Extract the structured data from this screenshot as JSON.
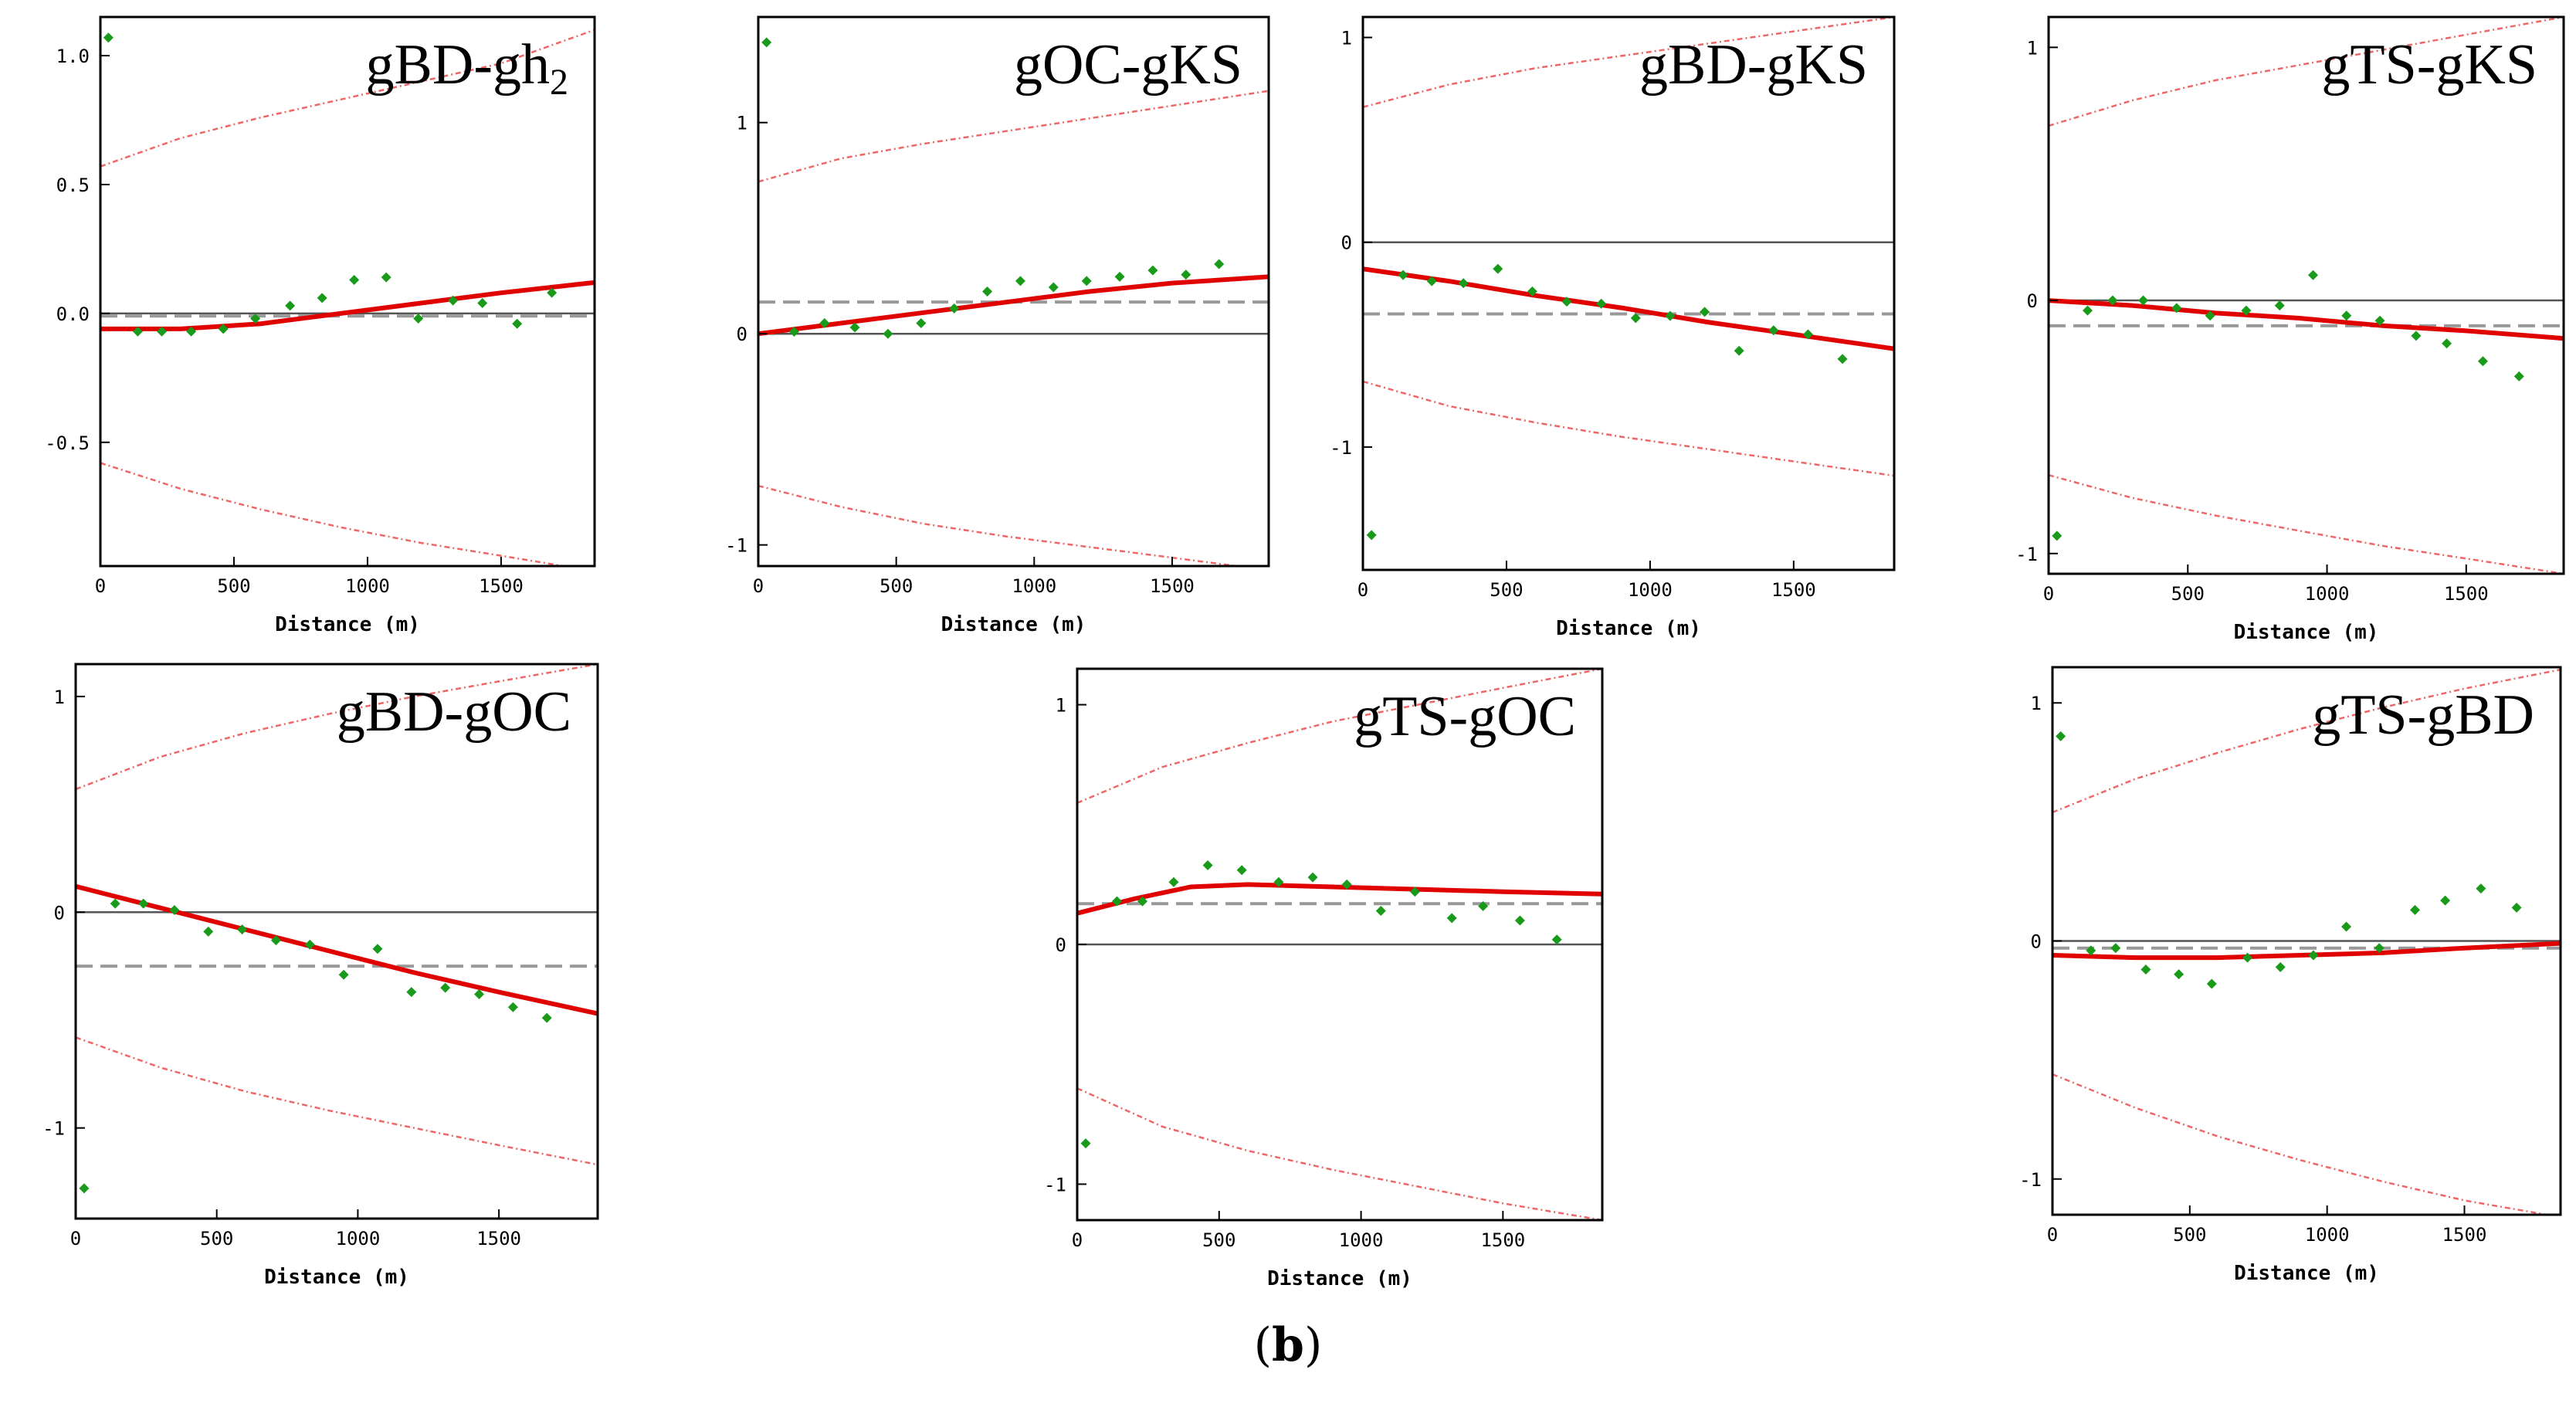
{
  "figure_label": "b",
  "colors": {
    "fit": "#e00000",
    "envelope": "#ee6666",
    "points": "#1a9a1a",
    "zero": "#555555",
    "mean": "#999999",
    "axis": "#000000"
  },
  "chart_data": [
    {
      "type": "scatter",
      "title": "gBD-gh",
      "title_subscript": "2",
      "xlabel": "Distance (m)",
      "ylabel": "",
      "xlim": [
        0,
        1850
      ],
      "ylim": [
        -0.98,
        1.15
      ],
      "xticks": [
        {
          "v": 0,
          "label": "0"
        },
        {
          "v": 500,
          "label": "500"
        },
        {
          "v": 1000,
          "label": "1000"
        },
        {
          "v": 1500,
          "label": "1500"
        }
      ],
      "yticks": [
        {
          "v": 1.0,
          "label": "1.0"
        },
        {
          "v": 0.5,
          "label": "0.5"
        },
        {
          "v": 0.0,
          "label": "0.0"
        },
        {
          "v": -0.5,
          "label": "-0.5"
        }
      ],
      "mean_line": -0.01,
      "points": {
        "x": [
          30,
          140,
          230,
          340,
          460,
          580,
          710,
          830,
          950,
          1070,
          1190,
          1320,
          1430,
          1560,
          1690
        ],
        "y": [
          1.07,
          -0.07,
          -0.07,
          -0.07,
          -0.06,
          -0.02,
          0.03,
          0.06,
          0.13,
          0.14,
          -0.02,
          0.05,
          0.04,
          -0.04,
          0.08
        ]
      },
      "fit": {
        "x": [
          0,
          300,
          600,
          900,
          1200,
          1500,
          1850
        ],
        "y": [
          -0.06,
          -0.06,
          -0.04,
          0.0,
          0.04,
          0.08,
          0.12
        ]
      },
      "upper_envelope": {
        "x": [
          0,
          300,
          600,
          900,
          1200,
          1500,
          1850
        ],
        "y": [
          0.57,
          0.68,
          0.76,
          0.83,
          0.9,
          0.97,
          1.1
        ]
      },
      "lower_envelope": {
        "x": [
          0,
          300,
          600,
          900,
          1200,
          1500,
          1850
        ],
        "y": [
          -0.58,
          -0.68,
          -0.76,
          -0.83,
          -0.89,
          -0.94,
          -1.0
        ]
      }
    },
    {
      "type": "scatter",
      "title": "gOC-gKS",
      "title_subscript": "",
      "xlabel": "Distance (m)",
      "ylabel": "",
      "xlim": [
        0,
        1850
      ],
      "ylim": [
        -1.1,
        1.5
      ],
      "xticks": [
        {
          "v": 0,
          "label": "0"
        },
        {
          "v": 500,
          "label": "500"
        },
        {
          "v": 1000,
          "label": "1000"
        },
        {
          "v": 1500,
          "label": "1500"
        }
      ],
      "yticks": [
        {
          "v": 1,
          "label": "1"
        },
        {
          "v": 0,
          "label": "0"
        },
        {
          "v": -1,
          "label": "-1"
        }
      ],
      "mean_line": 0.15,
      "points": {
        "x": [
          30,
          130,
          240,
          350,
          470,
          590,
          710,
          830,
          950,
          1070,
          1190,
          1310,
          1430,
          1550,
          1670
        ],
        "y": [
          1.38,
          0.01,
          0.05,
          0.03,
          0.0,
          0.05,
          0.12,
          0.2,
          0.25,
          0.22,
          0.25,
          0.27,
          0.3,
          0.28,
          0.33
        ]
      },
      "fit": {
        "x": [
          0,
          300,
          600,
          900,
          1200,
          1500,
          1850
        ],
        "y": [
          0.0,
          0.05,
          0.1,
          0.15,
          0.2,
          0.24,
          0.27
        ]
      },
      "upper_envelope": {
        "x": [
          0,
          300,
          600,
          900,
          1200,
          1500,
          1850
        ],
        "y": [
          0.72,
          0.83,
          0.9,
          0.96,
          1.02,
          1.08,
          1.15
        ]
      },
      "lower_envelope": {
        "x": [
          0,
          300,
          600,
          900,
          1200,
          1500,
          1850
        ],
        "y": [
          -0.72,
          -0.82,
          -0.9,
          -0.96,
          -1.01,
          -1.06,
          -1.12
        ]
      }
    },
    {
      "type": "scatter",
      "title": "gBD-gKS",
      "title_subscript": "",
      "xlabel": "Distance (m)",
      "ylabel": "",
      "xlim": [
        0,
        1850
      ],
      "ylim": [
        -1.6,
        1.1
      ],
      "xticks": [
        {
          "v": 0,
          "label": "0"
        },
        {
          "v": 500,
          "label": "500"
        },
        {
          "v": 1000,
          "label": "1000"
        },
        {
          "v": 1500,
          "label": "1500"
        }
      ],
      "yticks": [
        {
          "v": 1,
          "label": "1"
        },
        {
          "v": 0,
          "label": "0"
        },
        {
          "v": -1,
          "label": "-1"
        }
      ],
      "mean_line": -0.35,
      "points": {
        "x": [
          30,
          140,
          240,
          350,
          470,
          590,
          710,
          830,
          950,
          1070,
          1190,
          1310,
          1430,
          1550,
          1670
        ],
        "y": [
          -1.43,
          -0.16,
          -0.19,
          -0.2,
          -0.13,
          -0.24,
          -0.29,
          -0.3,
          -0.37,
          -0.36,
          -0.34,
          -0.53,
          -0.43,
          -0.45,
          -0.57
        ]
      },
      "fit": {
        "x": [
          0,
          300,
          600,
          900,
          1200,
          1500,
          1850
        ],
        "y": [
          -0.13,
          -0.19,
          -0.26,
          -0.32,
          -0.39,
          -0.45,
          -0.52
        ]
      },
      "upper_envelope": {
        "x": [
          0,
          300,
          600,
          900,
          1200,
          1500,
          1850
        ],
        "y": [
          0.66,
          0.77,
          0.85,
          0.91,
          0.97,
          1.03,
          1.1
        ]
      },
      "lower_envelope": {
        "x": [
          0,
          300,
          600,
          900,
          1200,
          1500,
          1850
        ],
        "y": [
          -0.68,
          -0.8,
          -0.88,
          -0.95,
          -1.01,
          -1.07,
          -1.14
        ]
      }
    },
    {
      "type": "scatter",
      "title": "gTS-gKS",
      "title_subscript": "",
      "xlabel": "Distance (m)",
      "ylabel": "",
      "xlim": [
        0,
        1850
      ],
      "ylim": [
        -1.08,
        1.12
      ],
      "xticks": [
        {
          "v": 0,
          "label": "0"
        },
        {
          "v": 500,
          "label": "500"
        },
        {
          "v": 1000,
          "label": "1000"
        },
        {
          "v": 1500,
          "label": "1500"
        }
      ],
      "yticks": [
        {
          "v": 1,
          "label": "1"
        },
        {
          "v": 0,
          "label": "0"
        },
        {
          "v": -1,
          "label": "-1"
        }
      ],
      "mean_line": -0.1,
      "points": {
        "x": [
          30,
          140,
          230,
          340,
          460,
          580,
          710,
          830,
          950,
          1070,
          1190,
          1320,
          1430,
          1560,
          1690
        ],
        "y": [
          -0.93,
          -0.04,
          0.0,
          0.0,
          -0.03,
          -0.06,
          -0.04,
          -0.02,
          0.1,
          -0.06,
          -0.08,
          -0.14,
          -0.17,
          -0.24,
          -0.3
        ]
      },
      "fit": {
        "x": [
          0,
          300,
          600,
          900,
          1200,
          1500,
          1850
        ],
        "y": [
          0.0,
          -0.02,
          -0.05,
          -0.07,
          -0.1,
          -0.12,
          -0.15
        ]
      },
      "upper_envelope": {
        "x": [
          0,
          300,
          600,
          900,
          1200,
          1500,
          1850
        ],
        "y": [
          0.69,
          0.79,
          0.87,
          0.93,
          0.99,
          1.05,
          1.12
        ]
      },
      "lower_envelope": {
        "x": [
          0,
          300,
          600,
          900,
          1200,
          1500,
          1850
        ],
        "y": [
          -0.69,
          -0.78,
          -0.85,
          -0.91,
          -0.97,
          -1.02,
          -1.08
        ]
      }
    },
    {
      "type": "scatter",
      "title": "gBD-gOC",
      "title_subscript": "",
      "xlabel": "Distance (m)",
      "ylabel": "",
      "xlim": [
        0,
        1850
      ],
      "ylim": [
        -1.42,
        1.15
      ],
      "xticks": [
        {
          "v": 0,
          "label": "0"
        },
        {
          "v": 500,
          "label": "500"
        },
        {
          "v": 1000,
          "label": "1000"
        },
        {
          "v": 1500,
          "label": "1500"
        }
      ],
      "yticks": [
        {
          "v": 1,
          "label": "1"
        },
        {
          "v": 0,
          "label": "0"
        },
        {
          "v": -1,
          "label": "-1"
        }
      ],
      "mean_line": -0.25,
      "points": {
        "x": [
          30,
          140,
          240,
          350,
          470,
          590,
          710,
          830,
          950,
          1070,
          1190,
          1310,
          1430,
          1550,
          1670
        ],
        "y": [
          -1.28,
          0.04,
          0.04,
          0.01,
          -0.09,
          -0.08,
          -0.13,
          -0.15,
          -0.29,
          -0.17,
          -0.37,
          -0.35,
          -0.38,
          -0.44,
          -0.49
        ]
      },
      "fit": {
        "x": [
          0,
          300,
          600,
          900,
          1200,
          1500,
          1850
        ],
        "y": [
          0.12,
          0.02,
          -0.08,
          -0.18,
          -0.28,
          -0.37,
          -0.47
        ]
      },
      "upper_envelope": {
        "x": [
          0,
          300,
          600,
          900,
          1200,
          1500,
          1850
        ],
        "y": [
          0.57,
          0.72,
          0.83,
          0.92,
          1.0,
          1.07,
          1.15
        ]
      },
      "lower_envelope": {
        "x": [
          0,
          300,
          600,
          900,
          1200,
          1500,
          1850
        ],
        "y": [
          -0.58,
          -0.72,
          -0.83,
          -0.92,
          -1.0,
          -1.08,
          -1.17
        ]
      }
    },
    {
      "type": "scatter",
      "title": "gTS-gOC",
      "title_subscript": "",
      "xlabel": "Distance (m)",
      "ylabel": "",
      "xlim": [
        0,
        1850
      ],
      "ylim": [
        -1.15,
        1.15
      ],
      "xticks": [
        {
          "v": 0,
          "label": "0"
        },
        {
          "v": 500,
          "label": "500"
        },
        {
          "v": 1000,
          "label": "1000"
        },
        {
          "v": 1500,
          "label": "1500"
        }
      ],
      "yticks": [
        {
          "v": 1,
          "label": "1"
        },
        {
          "v": 0,
          "label": "0"
        },
        {
          "v": -1,
          "label": "-1"
        }
      ],
      "mean_line": 0.17,
      "points": {
        "x": [
          30,
          140,
          230,
          340,
          460,
          580,
          710,
          830,
          950,
          1070,
          1190,
          1320,
          1430,
          1560,
          1690
        ],
        "y": [
          -0.83,
          0.18,
          0.18,
          0.26,
          0.33,
          0.31,
          0.26,
          0.28,
          0.25,
          0.14,
          0.22,
          0.11,
          0.16,
          0.1,
          0.02
        ]
      },
      "fit": {
        "x": [
          0,
          200,
          400,
          600,
          900,
          1200,
          1500,
          1850
        ],
        "y": [
          0.13,
          0.19,
          0.24,
          0.25,
          0.24,
          0.23,
          0.22,
          0.21
        ]
      },
      "upper_envelope": {
        "x": [
          0,
          300,
          600,
          900,
          1200,
          1500,
          1850
        ],
        "y": [
          0.59,
          0.74,
          0.84,
          0.93,
          1.0,
          1.07,
          1.15
        ]
      },
      "lower_envelope": {
        "x": [
          0,
          300,
          600,
          900,
          1200,
          1500,
          1850
        ],
        "y": [
          -0.6,
          -0.76,
          -0.86,
          -0.94,
          -1.01,
          -1.08,
          -1.15
        ]
      }
    },
    {
      "type": "scatter",
      "title": "gTS-gBD",
      "title_subscript": "",
      "xlabel": "Distance (m)",
      "ylabel": "",
      "xlim": [
        0,
        1850
      ],
      "ylim": [
        -1.15,
        1.15
      ],
      "xticks": [
        {
          "v": 0,
          "label": "0"
        },
        {
          "v": 500,
          "label": "500"
        },
        {
          "v": 1000,
          "label": "1000"
        },
        {
          "v": 1500,
          "label": "1500"
        }
      ],
      "yticks": [
        {
          "v": 1,
          "label": "1"
        },
        {
          "v": 0,
          "label": "0"
        },
        {
          "v": -1,
          "label": "-1"
        }
      ],
      "mean_line": -0.03,
      "points": {
        "x": [
          30,
          140,
          230,
          340,
          460,
          580,
          710,
          830,
          950,
          1070,
          1190,
          1320,
          1430,
          1560,
          1690
        ],
        "y": [
          0.86,
          -0.04,
          -0.03,
          -0.12,
          -0.14,
          -0.18,
          -0.07,
          -0.11,
          -0.06,
          0.06,
          -0.03,
          0.13,
          0.17,
          0.22,
          0.14
        ]
      },
      "fit": {
        "x": [
          0,
          300,
          600,
          900,
          1200,
          1500,
          1850
        ],
        "y": [
          -0.06,
          -0.07,
          -0.07,
          -0.06,
          -0.05,
          -0.03,
          -0.01
        ]
      },
      "upper_envelope": {
        "x": [
          0,
          300,
          600,
          900,
          1200,
          1500,
          1850
        ],
        "y": [
          0.54,
          0.68,
          0.79,
          0.89,
          0.98,
          1.06,
          1.14
        ]
      },
      "lower_envelope": {
        "x": [
          0,
          300,
          600,
          900,
          1200,
          1500,
          1850
        ],
        "y": [
          -0.56,
          -0.7,
          -0.82,
          -0.92,
          -1.01,
          -1.09,
          -1.16
        ]
      }
    }
  ]
}
